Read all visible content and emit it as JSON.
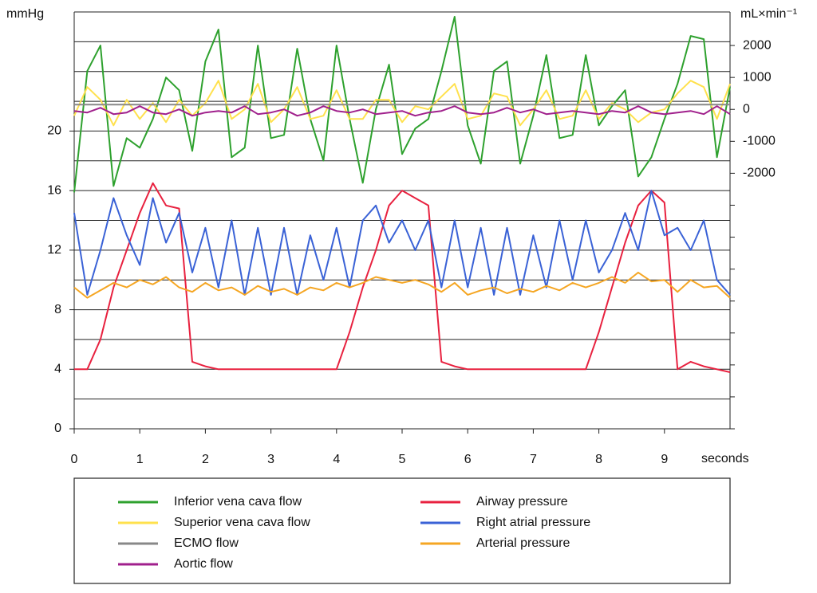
{
  "chart_data": {
    "type": "line",
    "ylabel": "mmHg",
    "y2label": "mL×min⁻¹",
    "xlabel": "seconds",
    "xlim": [
      0,
      10
    ],
    "xticks": [
      0,
      1,
      2,
      3,
      4,
      5,
      6,
      7,
      8,
      9
    ],
    "ylim": [
      0,
      28
    ],
    "yticks": [
      0,
      4,
      8,
      12,
      16,
      20
    ],
    "ygrid": [
      0,
      2,
      4,
      6,
      8,
      10,
      12,
      14,
      16,
      18,
      20,
      22,
      24,
      26,
      28
    ],
    "y2lim": [
      -10000,
      3050
    ],
    "y2ticks": [
      2000,
      1000,
      0,
      -1000,
      -2000
    ],
    "y2minor": [
      -3000,
      -4000,
      -5000,
      -6000,
      -7000,
      -8000,
      -9000,
      -10000
    ],
    "grid": true,
    "x": [
      0,
      0.2,
      0.4,
      0.6,
      0.8,
      1,
      1.2,
      1.4,
      1.6,
      1.8,
      2,
      2.2,
      2.4,
      2.6,
      2.8,
      3,
      3.2,
      3.4,
      3.6,
      3.8,
      4,
      4.2,
      4.4,
      4.6,
      4.8,
      5,
      5.2,
      5.4,
      5.6,
      5.8,
      6,
      6.2,
      6.4,
      6.6,
      6.8,
      7,
      7.2,
      7.4,
      7.6,
      7.8,
      8,
      8.2,
      8.4,
      8.6,
      8.8,
      9,
      9.2,
      9.4,
      9.6,
      9.8,
      10
    ],
    "series": [
      {
        "name": "Inferior vena cava flow",
        "color": "#2ea12e",
        "axis": "y2",
        "values": [
          -2600,
          1200,
          2000,
          -2400,
          -900,
          -1200,
          -300,
          1000,
          600,
          -1300,
          1500,
          2500,
          -1500,
          -1200,
          2000,
          -900,
          -800,
          1900,
          -300,
          -1600,
          2000,
          -300,
          -2300,
          0,
          1400,
          -1400,
          -600,
          -300,
          1200,
          2900,
          -500,
          -1700,
          1200,
          1500,
          -1700,
          -200,
          1700,
          -900,
          -800,
          1700,
          -500,
          100,
          600,
          -2100,
          -1500,
          -300,
          800,
          2300,
          2200,
          -1500,
          700
        ]
      },
      {
        "name": "Superior vena cava flow",
        "color": "#ffe14d",
        "axis": "y2",
        "values": [
          -200,
          700,
          300,
          -500,
          300,
          -300,
          200,
          -400,
          300,
          -200,
          200,
          900,
          -300,
          0,
          800,
          -400,
          0,
          700,
          -300,
          -200,
          600,
          -300,
          -300,
          300,
          300,
          -400,
          100,
          0,
          400,
          800,
          -300,
          -200,
          500,
          400,
          -500,
          0,
          600,
          -300,
          -200,
          600,
          -300,
          200,
          0,
          -400,
          -100,
          0,
          500,
          900,
          700,
          -300,
          800
        ]
      },
      {
        "name": "ECMO flow",
        "color": "#888888",
        "axis": "y2",
        "values": [
          150,
          150,
          150,
          150,
          150,
          150,
          150,
          150,
          150,
          150,
          150,
          150,
          150,
          150,
          150,
          150,
          150,
          150,
          150,
          150,
          150,
          150,
          150,
          150,
          150,
          150,
          150,
          150,
          150,
          150,
          150,
          150,
          150,
          150,
          150,
          150,
          150,
          150,
          150,
          150,
          150,
          150,
          150,
          150,
          150,
          150,
          150,
          150,
          150,
          150,
          150
        ]
      },
      {
        "name": "Aortic flow",
        "color": "#a0208c",
        "axis": "y2",
        "values": [
          -50,
          -100,
          50,
          -150,
          -100,
          100,
          -100,
          -150,
          0,
          -200,
          -100,
          -50,
          -100,
          100,
          -150,
          -100,
          0,
          -200,
          -100,
          100,
          -50,
          -100,
          0,
          -150,
          -100,
          -50,
          -200,
          -100,
          -50,
          100,
          -100,
          -150,
          -100,
          50,
          -100,
          0,
          -150,
          -100,
          -50,
          -100,
          -150,
          -50,
          -100,
          100,
          -100,
          -150,
          -100,
          -50,
          -150,
          100,
          -150
        ]
      },
      {
        "name": "Airway pressure",
        "color": "#e8213f",
        "values": [
          4,
          4,
          6,
          9.5,
          12,
          14.5,
          16.5,
          15,
          14.8,
          4.5,
          4.2,
          4,
          4,
          4,
          4,
          4,
          4,
          4,
          4,
          4,
          4,
          6.5,
          9.5,
          12,
          15,
          16,
          15.5,
          15,
          4.5,
          4.2,
          4,
          4,
          4,
          4,
          4,
          4,
          4,
          4,
          4,
          4,
          6.5,
          9.5,
          12.5,
          15,
          16,
          15.2,
          4,
          4.5,
          4.2,
          4,
          3.8
        ]
      },
      {
        "name": "Right atrial pressure",
        "color": "#3a62d6",
        "values": [
          14.5,
          9,
          12,
          15.5,
          13,
          11,
          15.5,
          12.5,
          14.5,
          10.5,
          13.5,
          9.5,
          14,
          9,
          13.5,
          9,
          13.5,
          9,
          13,
          10,
          13.5,
          9.5,
          14,
          15,
          12.5,
          14,
          12,
          14,
          9.5,
          14,
          9.5,
          13.5,
          9,
          13.5,
          9,
          13,
          9.5,
          14,
          10,
          14,
          10.5,
          12,
          14.5,
          12,
          16,
          13,
          13.5,
          12,
          14,
          10,
          9
        ]
      },
      {
        "name": "Arterial pressure",
        "color": "#f5a623",
        "values": [
          9.5,
          8.8,
          9.3,
          9.8,
          9.5,
          10,
          9.7,
          10.2,
          9.5,
          9.2,
          9.8,
          9.3,
          9.5,
          9,
          9.6,
          9.2,
          9.4,
          9,
          9.5,
          9.3,
          9.8,
          9.5,
          9.8,
          10.2,
          10,
          9.8,
          10,
          9.7,
          9.2,
          9.8,
          9,
          9.3,
          9.5,
          9.1,
          9.4,
          9.2,
          9.6,
          9.3,
          9.8,
          9.5,
          9.8,
          10.2,
          9.8,
          10.5,
          9.9,
          10,
          9.2,
          10,
          9.5,
          9.6,
          8.8
        ]
      }
    ]
  }
}
